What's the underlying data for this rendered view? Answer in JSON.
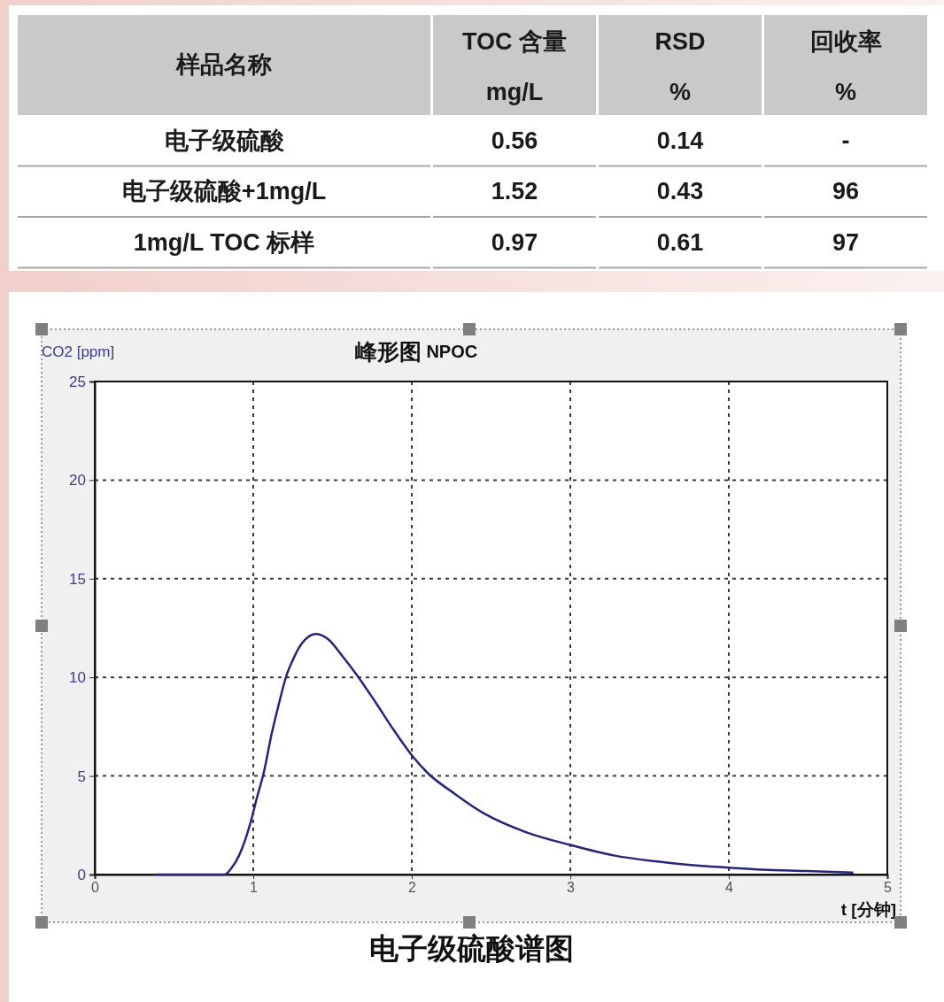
{
  "chart_data": [
    {
      "type": "other",
      "xlabel": "样品名称",
      "categories": [
        "电子级硫酸",
        "电子级硫酸+1mg/L",
        "1mg/L TOC 标样"
      ],
      "data_labels": true,
      "series": [
        {
          "name": "TOC 含量 mg/L",
          "values": [
            0.56,
            1.52,
            0.97
          ]
        },
        {
          "name": "RSD %",
          "values": [
            0.14,
            0.43,
            0.61
          ]
        },
        {
          "name": "回收率 %",
          "values": [
            null,
            96,
            97
          ],
          "value_labels": [
            "-",
            "96",
            "97"
          ]
        }
      ]
    },
    {
      "type": "line",
      "title": "峰形图 NPOC",
      "xlabel": "t [分钟]",
      "ylabel": "CO2 [ppm]",
      "color": "#25257a",
      "x": [
        0.39,
        0.82,
        0.86,
        0.91,
        0.985,
        1.02,
        1.07,
        1.115,
        1.16,
        1.21,
        1.245,
        1.3,
        1.395,
        1.47,
        1.56,
        1.655,
        1.77,
        1.88,
        2.0,
        2.1,
        2.27,
        2.455,
        2.72,
        3.0,
        3.28,
        3.55,
        3.83,
        4.0,
        4.21,
        4.49,
        4.78
      ],
      "values": [
        0,
        0,
        0.3,
        0.96,
        2.7,
        3.8,
        5.3,
        7.1,
        8.6,
        10.1,
        10.8,
        11.65,
        12.2,
        11.95,
        11.1,
        10.1,
        8.75,
        7.4,
        6.05,
        5.15,
        4.1,
        3.1,
        2.15,
        1.5,
        0.96,
        0.66,
        0.44,
        0.35,
        0.25,
        0.18,
        0.1
      ],
      "xlim": [
        0,
        5
      ],
      "xticks": [
        0,
        1,
        2,
        3,
        4,
        5
      ],
      "ylim": [
        0,
        25
      ],
      "yticks": [
        0,
        5,
        10,
        15,
        20,
        25
      ],
      "grid": true,
      "annotations": [
        "电子级硫酸谱图"
      ]
    }
  ]
}
